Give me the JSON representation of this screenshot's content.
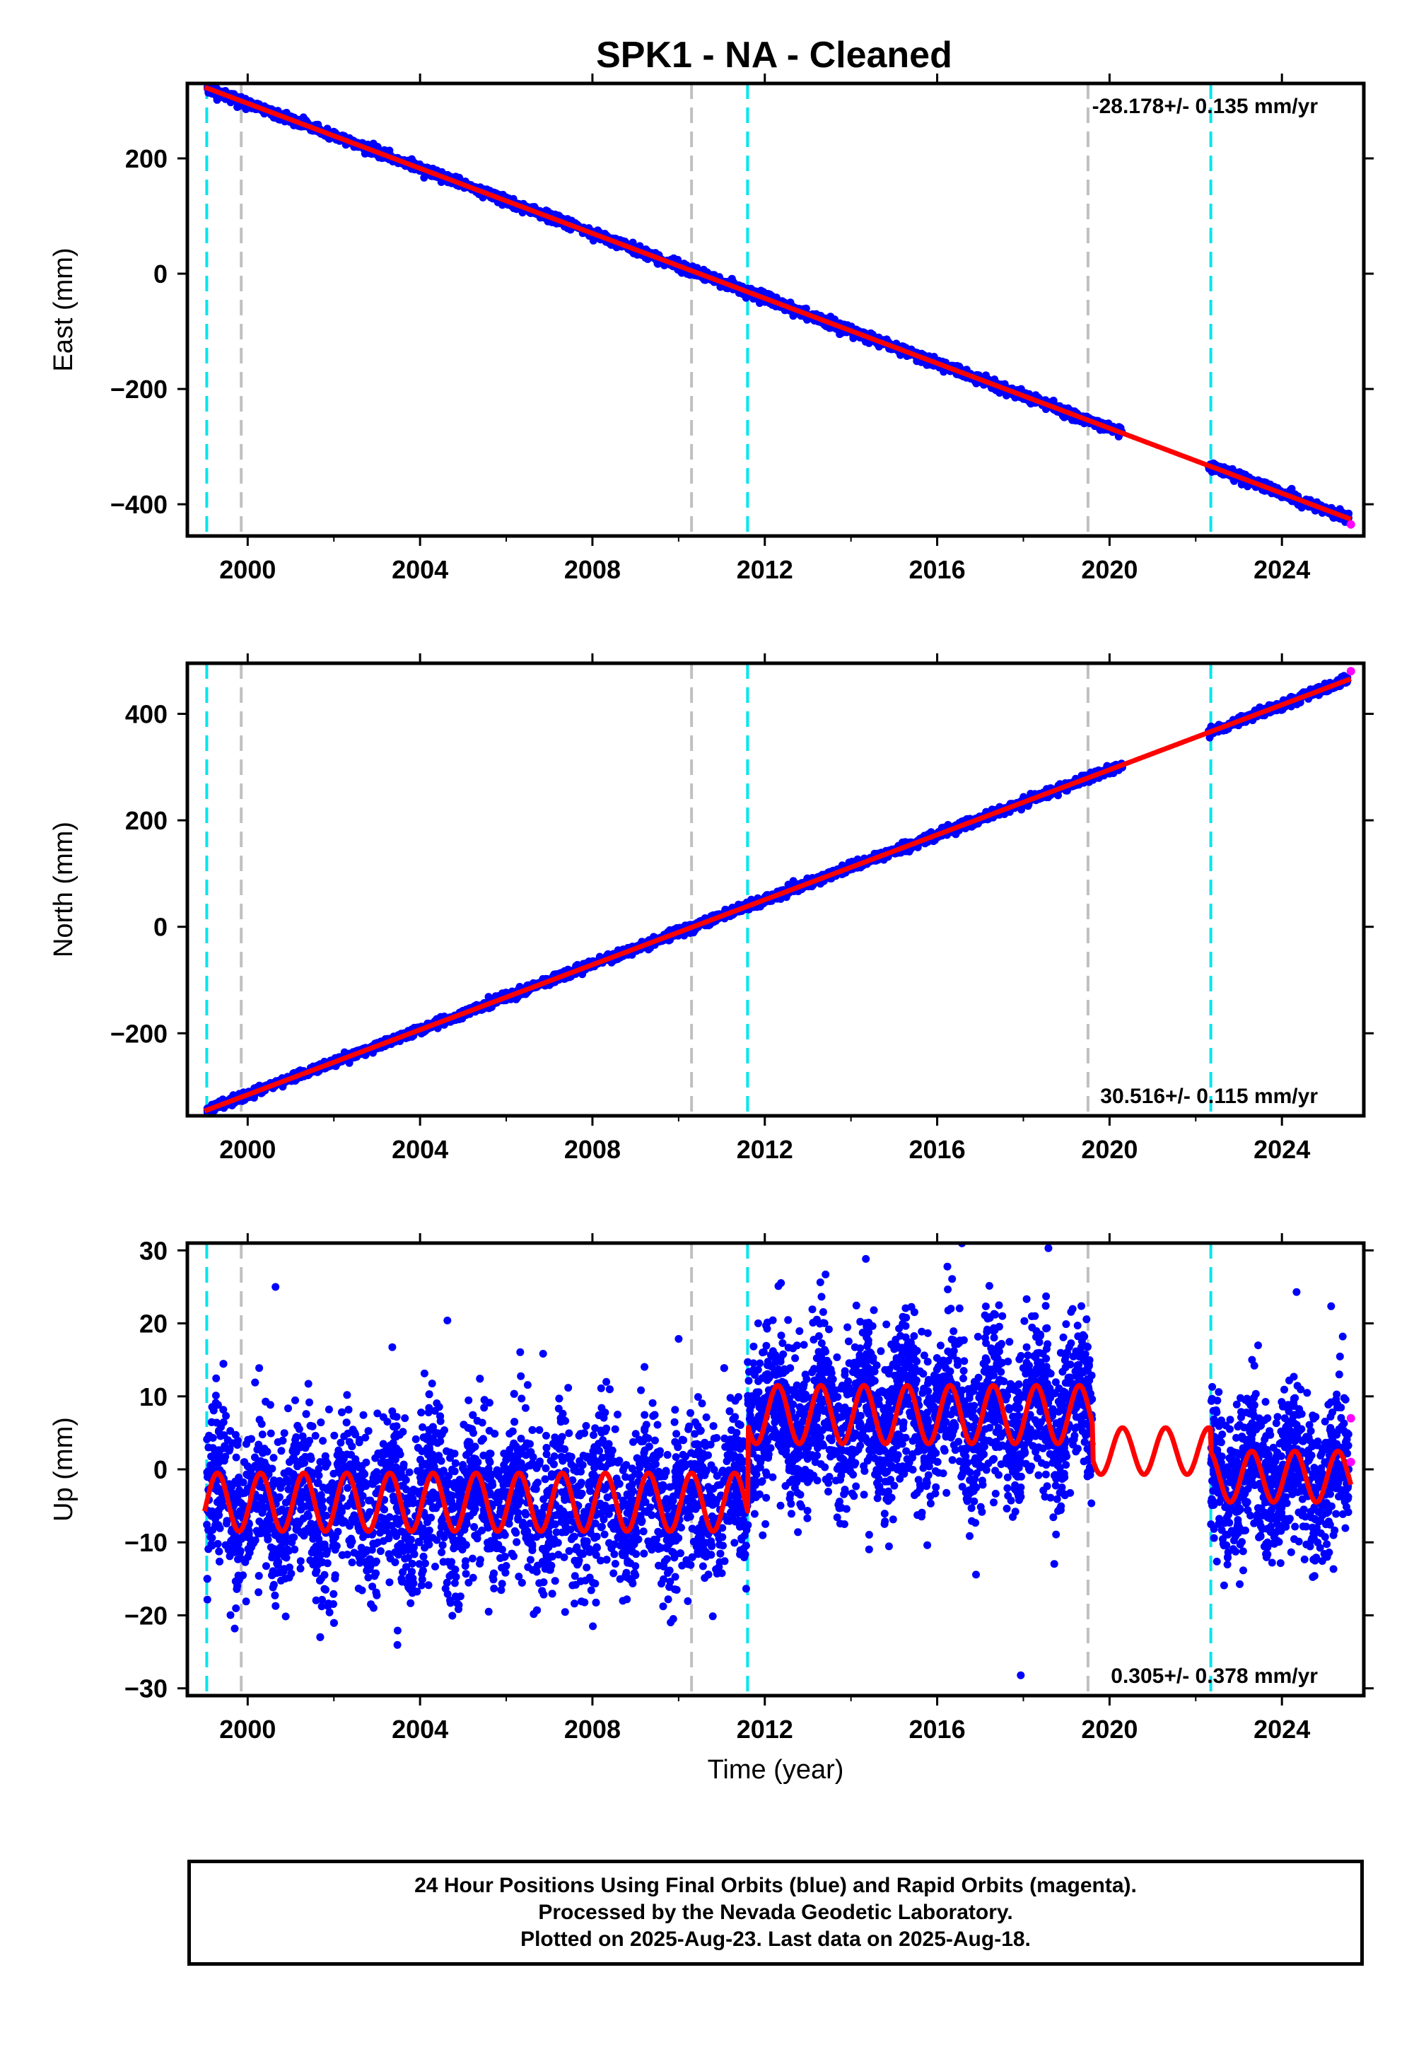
{
  "figure": {
    "title": "SPK1  - NA - Cleaned",
    "xlabel": "Time (year)"
  },
  "chart_data": [
    {
      "type": "scatter",
      "panel": "east",
      "ylabel": "East (mm)",
      "rate_label": "-28.178+/- 0.135 mm/yr",
      "rate_label_position": "top-right",
      "xlim": [
        1998.6,
        2025.9
      ],
      "ylim": [
        -455,
        330
      ],
      "x_ticks": [
        2000,
        2004,
        2008,
        2012,
        2016,
        2020,
        2024
      ],
      "y_ticks": [
        -400,
        -200,
        0,
        200
      ],
      "y_tick_labels": [
        "−400",
        "−200",
        "0",
        "200"
      ],
      "model": {
        "rate_mm_per_yr": -28.178,
        "reference": [
          2010.5,
          -0.5
        ],
        "amplitude": 0,
        "gap": [
          2020.3,
          2022.3
        ]
      },
      "series": [
        {
          "label": "Final Orbits",
          "color": "#0000ff",
          "x_start": 1999.05,
          "x_end": 2025.55,
          "scatter_mm": 4
        },
        {
          "label": "Rapid Orbits",
          "color": "#ff00ff",
          "x": [
            2025.6
          ],
          "y": [
            -435
          ]
        }
      ]
    },
    {
      "type": "scatter",
      "panel": "north",
      "ylabel": "North (mm)",
      "rate_label": "30.516+/- 0.115 mm/yr",
      "rate_label_position": "bottom-right",
      "xlim": [
        1998.6,
        2025.9
      ],
      "ylim": [
        -355,
        495
      ],
      "x_ticks": [
        2000,
        2004,
        2008,
        2012,
        2016,
        2020,
        2024
      ],
      "y_ticks": [
        -200,
        0,
        200,
        400
      ],
      "y_tick_labels": [
        "−200",
        "0",
        "200",
        "400"
      ],
      "model": {
        "rate_mm_per_yr": 30.516,
        "reference": [
          2010.5,
          5
        ],
        "amplitude": 0,
        "gap": [
          2020.3,
          2022.3
        ]
      },
      "series": [
        {
          "label": "Final Orbits",
          "color": "#0000ff",
          "x_start": 1999.05,
          "x_end": 2025.55,
          "scatter_mm": 4
        },
        {
          "label": "Rapid Orbits",
          "color": "#ff00ff",
          "x": [
            2025.6
          ],
          "y": [
            480
          ]
        }
      ]
    },
    {
      "type": "scatter",
      "panel": "up",
      "ylabel": "Up (mm)",
      "rate_label": "0.305+/- 0.378 mm/yr",
      "rate_label_position": "bottom-right",
      "xlim": [
        1998.6,
        2025.9
      ],
      "ylim": [
        -31,
        31
      ],
      "x_ticks": [
        2000,
        2004,
        2008,
        2012,
        2016,
        2020,
        2024
      ],
      "y_ticks": [
        -30,
        -20,
        -10,
        0,
        10,
        20,
        30
      ],
      "y_tick_labels": [
        "−30",
        "−20",
        "−10",
        "0",
        "10",
        "20",
        "30"
      ],
      "model": {
        "segments": [
          {
            "x": [
              1999.0,
              2011.6
            ],
            "offset": -4.5,
            "amplitude": 4
          },
          {
            "x": [
              2011.6,
              2019.6
            ],
            "offset": 7.5,
            "amplitude": 4
          },
          {
            "x": [
              2019.6,
              2022.35
            ],
            "offset": 2.5,
            "amplitude": 3.2
          },
          {
            "x": [
              2022.35,
              2025.6
            ],
            "offset": -1.0,
            "amplitude": 3.5
          }
        ]
      },
      "series": [
        {
          "label": "Final Orbits",
          "color": "#0000ff",
          "segments": [
            {
              "x": [
                1999.05,
                2011.6
              ],
              "spread_mm": 5.5
            },
            {
              "x": [
                2011.6,
                2019.6
              ],
              "spread_mm": 5.5
            },
            {
              "x": [
                2022.35,
                2025.55
              ],
              "spread_mm": 5
            }
          ]
        },
        {
          "label": "Rapid Orbits",
          "color": "#ff00ff",
          "x": [
            2025.6,
            2025.6
          ],
          "y": [
            7,
            1
          ]
        }
      ]
    }
  ],
  "offset_lines": {
    "equipment_color": "#00e5ee",
    "other_color": "#c0c0c0",
    "equipment": [
      1999.05,
      2011.6,
      2022.35
    ],
    "other": [
      1999.85,
      2010.3,
      2019.5
    ]
  },
  "footer": {
    "line1": "24 Hour Positions Using Final Orbits (blue) and Rapid Orbits (magenta).",
    "line2": "Processed by the Nevada Geodetic Laboratory.",
    "line3": "Plotted on 2025-Aug-23. Last data on 2025-Aug-18."
  }
}
